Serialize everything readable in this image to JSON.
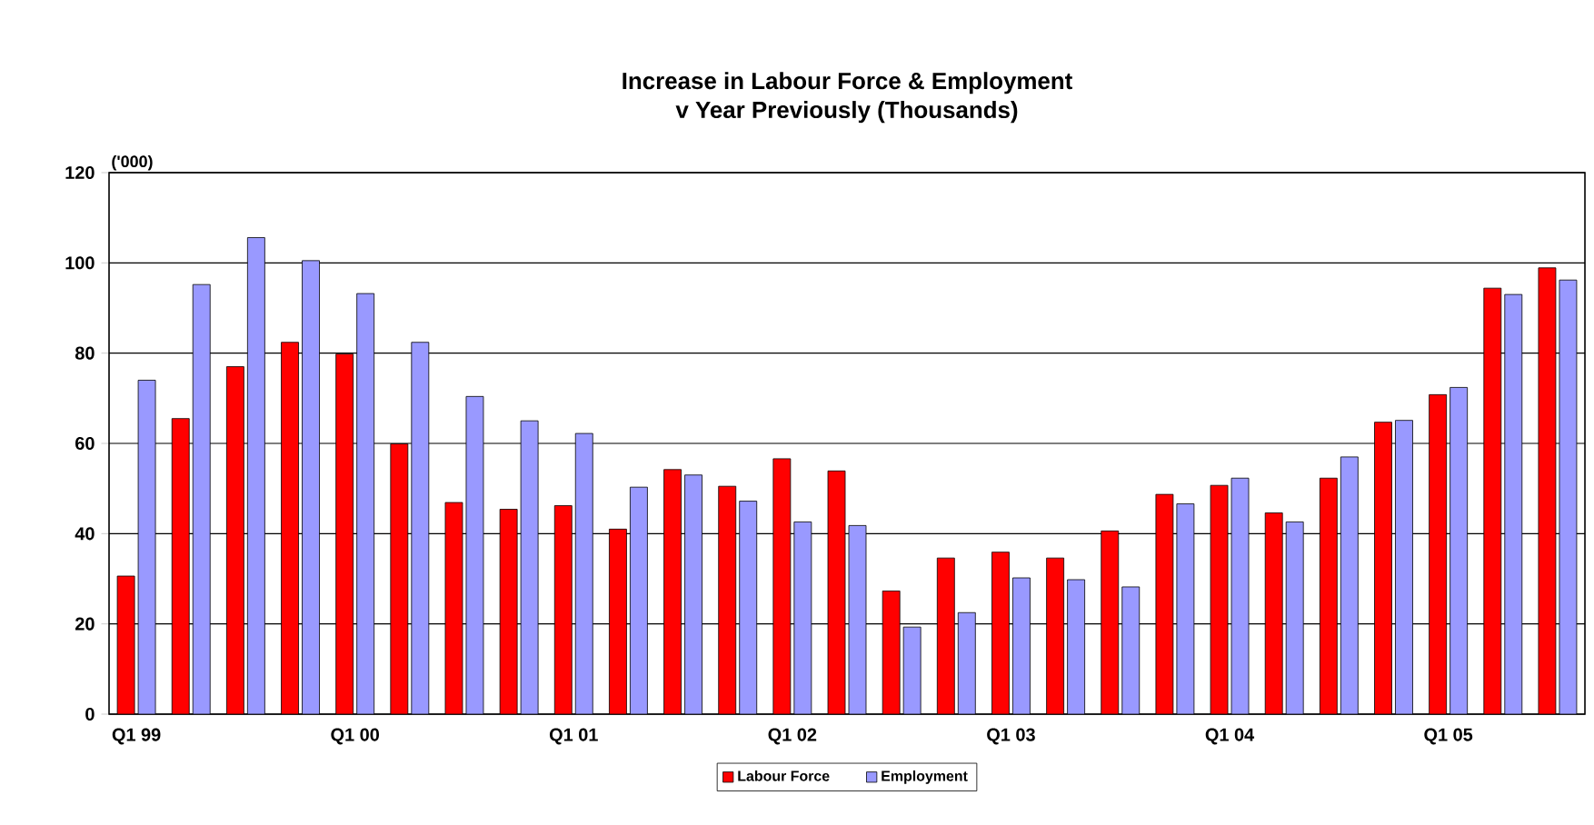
{
  "chart_data": {
    "type": "bar",
    "title": "Increase in Labour Force & Employment\nv Year Previously (Thousands)",
    "ylabel": "('000)",
    "categories": [
      "Q1 99",
      null,
      null,
      null,
      "Q1 00",
      null,
      null,
      null,
      "Q1 01",
      null,
      null,
      null,
      "Q1 02",
      null,
      null,
      null,
      "Q1 03",
      null,
      null,
      null,
      "Q1 04",
      null,
      null,
      null,
      "Q1 05",
      null,
      null
    ],
    "series": [
      {
        "name": "Labour Force",
        "color": "#ff0000",
        "values": [
          30.6,
          65.5,
          77,
          82.4,
          79.8,
          59.9,
          46.9,
          45.4,
          46.2,
          41,
          54.2,
          50.5,
          56.6,
          53.9,
          27.3,
          34.6,
          35.9,
          34.6,
          40.6,
          48.7,
          50.7,
          44.6,
          52.3,
          64.7,
          70.8,
          94.4,
          98.9
        ]
      },
      {
        "name": "Employment",
        "color": "#9999ff",
        "values": [
          74,
          95.2,
          105.6,
          100.5,
          93.2,
          82.4,
          70.4,
          65,
          62.2,
          50.3,
          53,
          47.2,
          42.6,
          41.8,
          19.3,
          22.5,
          30.2,
          29.8,
          28.2,
          46.6,
          52.3,
          42.6,
          57,
          65.1,
          72.4,
          93,
          96.2
        ]
      }
    ],
    "ylim": [
      0,
      120
    ],
    "yticks": [
      0,
      20,
      40,
      60,
      80,
      100,
      120
    ],
    "grid": "y",
    "legend": "bottom"
  }
}
